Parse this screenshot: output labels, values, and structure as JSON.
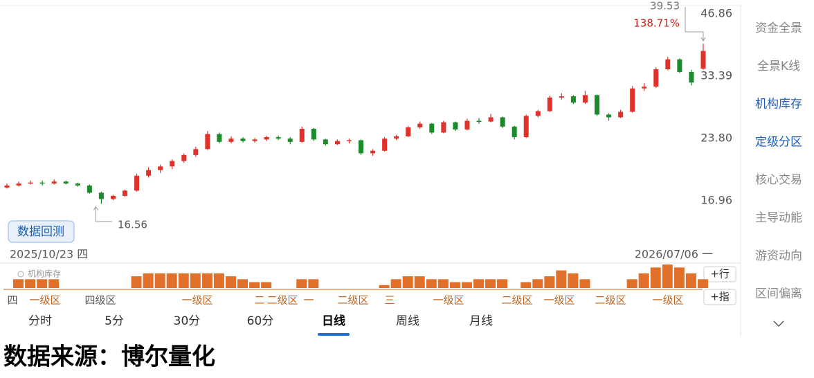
{
  "chart_data": {
    "type": "candlestick",
    "log_scale": true,
    "grid": false,
    "ylim": [
      13.7,
      50.1
    ],
    "yticks": [
      46.86,
      33.39,
      {
        "value": 23.8,
        "label": "23.80"
      },
      16.96
    ],
    "up_color": "#e0312b",
    "down_color": "#1a8a2a",
    "candles": [
      [
        18.1,
        18.5,
        18.0,
        18.3
      ],
      [
        18.3,
        18.7,
        18.2,
        18.5
      ],
      [
        18.5,
        18.8,
        18.4,
        18.6
      ],
      [
        18.6,
        18.8,
        18.3,
        18.5
      ],
      [
        18.5,
        18.9,
        18.4,
        18.7
      ],
      [
        18.7,
        18.8,
        18.4,
        18.5
      ],
      [
        18.5,
        18.6,
        18.2,
        18.3
      ],
      [
        18.3,
        18.4,
        17.5,
        17.6
      ],
      [
        17.6,
        17.7,
        16.56,
        17.0
      ],
      [
        17.0,
        17.4,
        16.9,
        17.3
      ],
      [
        17.3,
        17.9,
        17.2,
        17.8
      ],
      [
        17.8,
        19.5,
        17.7,
        19.3
      ],
      [
        19.3,
        20.2,
        19.1,
        19.9
      ],
      [
        19.9,
        20.5,
        19.6,
        20.3
      ],
      [
        20.3,
        21.1,
        20.0,
        20.9
      ],
      [
        20.9,
        21.8,
        20.7,
        21.6
      ],
      [
        21.6,
        22.6,
        21.4,
        22.3
      ],
      [
        22.3,
        24.6,
        22.2,
        24.2
      ],
      [
        24.2,
        24.4,
        23.0,
        23.2
      ],
      [
        23.2,
        23.9,
        23.0,
        23.6
      ],
      [
        23.6,
        23.8,
        23.1,
        23.3
      ],
      [
        23.3,
        23.7,
        23.1,
        23.5
      ],
      [
        23.5,
        24.0,
        23.3,
        23.8
      ],
      [
        23.8,
        24.0,
        23.4,
        23.6
      ],
      [
        23.6,
        23.8,
        22.9,
        23.2
      ],
      [
        23.2,
        25.2,
        23.1,
        24.9
      ],
      [
        24.9,
        25.0,
        23.3,
        23.5
      ],
      [
        23.5,
        23.6,
        22.7,
        22.9
      ],
      [
        22.9,
        23.5,
        22.8,
        23.3
      ],
      [
        23.3,
        23.6,
        23.0,
        23.4
      ],
      [
        23.4,
        23.5,
        21.6,
        21.8
      ],
      [
        21.8,
        22.3,
        21.5,
        22.1
      ],
      [
        22.1,
        23.8,
        22.0,
        23.6
      ],
      [
        23.6,
        24.1,
        23.4,
        23.9
      ],
      [
        23.9,
        25.3,
        23.8,
        25.1
      ],
      [
        25.1,
        25.9,
        24.9,
        25.6
      ],
      [
        25.6,
        25.7,
        24.2,
        24.4
      ],
      [
        24.4,
        26.0,
        24.3,
        25.8
      ],
      [
        25.8,
        25.9,
        24.6,
        24.8
      ],
      [
        24.8,
        26.3,
        24.7,
        26.0
      ],
      [
        26.0,
        26.4,
        25.6,
        25.9
      ],
      [
        25.9,
        27.0,
        25.8,
        26.5
      ],
      [
        26.5,
        26.6,
        25.0,
        25.2
      ],
      [
        25.2,
        25.3,
        23.5,
        23.8
      ],
      [
        23.8,
        26.9,
        23.7,
        26.7
      ],
      [
        26.7,
        27.6,
        26.5,
        27.4
      ],
      [
        27.4,
        29.8,
        27.3,
        29.5
      ],
      [
        29.5,
        30.2,
        29.2,
        29.7
      ],
      [
        29.7,
        29.9,
        28.5,
        28.7
      ],
      [
        28.7,
        30.6,
        28.5,
        29.9
      ],
      [
        29.9,
        30.0,
        26.7,
        26.9
      ],
      [
        26.9,
        27.1,
        26.0,
        26.5
      ],
      [
        26.5,
        27.6,
        26.4,
        27.3
      ],
      [
        27.3,
        31.4,
        27.2,
        31.0
      ],
      [
        31.0,
        31.9,
        30.6,
        31.3
      ],
      [
        31.3,
        34.8,
        31.1,
        34.4
      ],
      [
        34.4,
        36.8,
        34.2,
        36.3
      ],
      [
        36.3,
        36.5,
        33.7,
        33.9
      ],
      [
        33.9,
        34.3,
        31.5,
        32.0
      ],
      [
        34.5,
        39.53,
        34.3,
        38.0
      ]
    ],
    "high_label": "39.53",
    "high_change": "138.71%",
    "low_label": "16.56",
    "start_date": "2025/10/23 四",
    "end_date": "2026/07/06 一",
    "inventory": {
      "title": "机构库存",
      "color": "#e0702a",
      "values": [
        null,
        3,
        3,
        3,
        3,
        null,
        null,
        null,
        null,
        null,
        null,
        4,
        5,
        5,
        5,
        5,
        5,
        5,
        5,
        4,
        3,
        2,
        2,
        null,
        null,
        3,
        3,
        null,
        null,
        null,
        null,
        null,
        1,
        3,
        4,
        4,
        3,
        3,
        2,
        2,
        3,
        3,
        3,
        null,
        2,
        3,
        4,
        6,
        5,
        3,
        null,
        null,
        null,
        3,
        5,
        7,
        8,
        7,
        5,
        3
      ],
      "ylim": [
        0,
        8.5
      ]
    },
    "zones": [
      {
        "label": "四",
        "color": "#555555"
      },
      {
        "label": "一级区",
        "color": "#c0651f"
      },
      {
        "label": "四级区",
        "color": "#555555"
      },
      {
        "label": "一级区",
        "color": "#c0651f"
      },
      {
        "label": "二",
        "color": "#c0651f"
      },
      {
        "label": "二级区",
        "color": "#c0651f"
      },
      {
        "label": "一",
        "color": "#c0651f"
      },
      {
        "label": "二级区",
        "color": "#c0651f"
      },
      {
        "label": "三",
        "color": "#c0651f"
      },
      {
        "label": "一级区",
        "color": "#c0651f"
      },
      {
        "label": "二级区",
        "color": "#c0651f"
      },
      {
        "label": "一级区",
        "color": "#c0651f"
      },
      {
        "label": "二级区",
        "color": "#c0651f"
      },
      {
        "label": "一级区",
        "color": "#c0651f"
      }
    ]
  },
  "backtest_button": "数据回测",
  "side_buttons": [
    "+行",
    "+指"
  ],
  "sidebar": [
    "资金全景",
    "全景K线",
    "机构库存",
    "定级分区",
    "核心交易",
    "主导动能",
    "游资动向",
    "区间偏离"
  ],
  "sidebar_active": [
    2,
    3
  ],
  "tabs": [
    "分时",
    "5分",
    "30分",
    "60分",
    "日线",
    "周线",
    "月线"
  ],
  "active_tab": 4,
  "footer": "数据来源：博尔量化"
}
